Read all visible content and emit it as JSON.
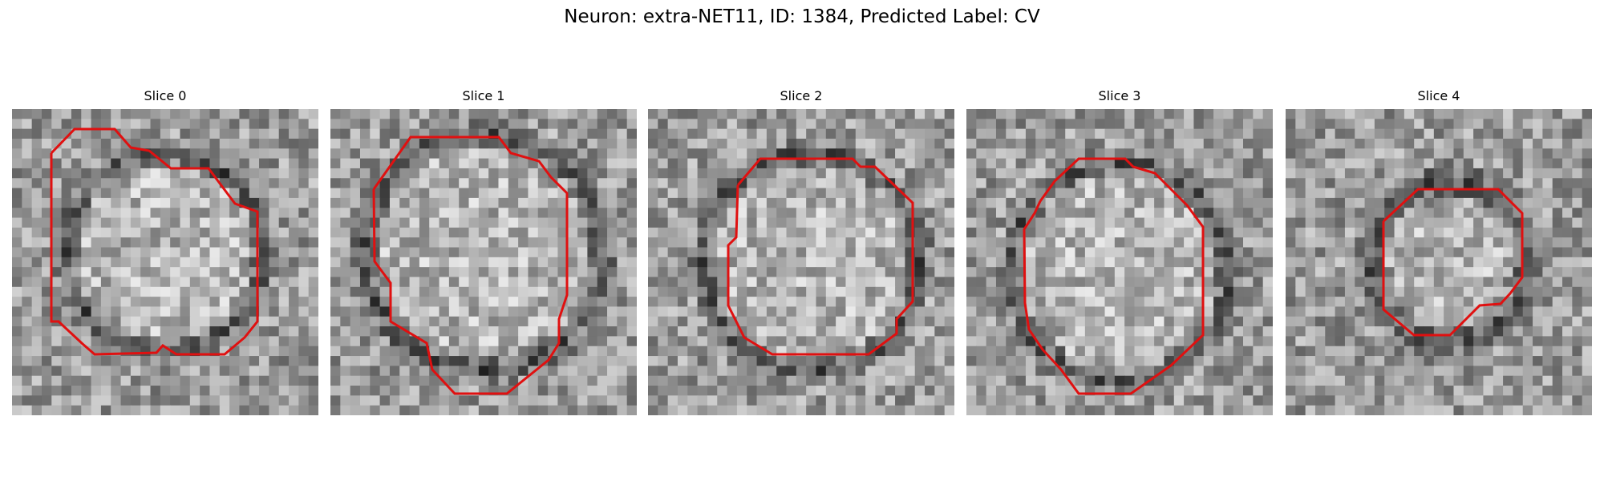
{
  "figure": {
    "title": "Neuron: extra-NET11, ID: 1384, Predicted Label: CV",
    "contour_color": "#e01010",
    "image_colormap": "gray"
  },
  "panels": [
    {
      "title": "Slice 0"
    },
    {
      "title": "Slice 1"
    },
    {
      "title": "Slice 2"
    },
    {
      "title": "Slice 3"
    },
    {
      "title": "Slice 4"
    }
  ]
}
